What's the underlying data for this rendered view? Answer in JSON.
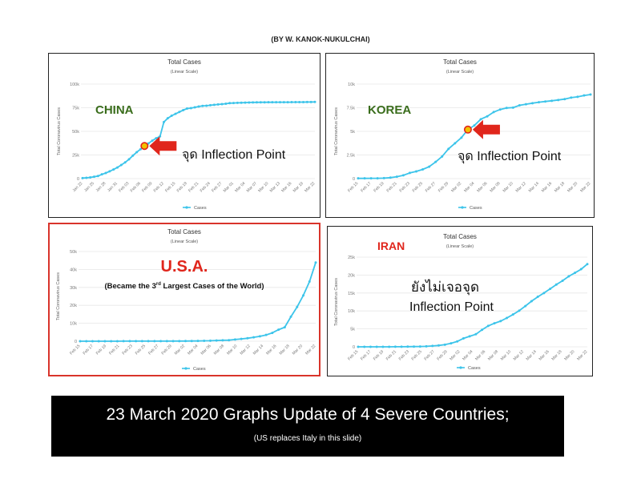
{
  "credit": "(BY W. KANOK-NUKULCHAI)",
  "banner": {
    "main": "23 March 2020 Graphs Update of 4 Severe Countries;",
    "sub": "(US replaces Italy in this slide)"
  },
  "colors": {
    "line": "#3cc4ea",
    "grid": "#e6e6e6",
    "inflection_marker": "#f2c200",
    "arrow": "#e0261c",
    "china_korea_label": "#3a6d1c",
    "usa_iran_label": "#e0261c",
    "panel_border_usa": "#d9342b"
  },
  "panels": {
    "china": {
      "title": "Total Cases",
      "subtitle": "(Linear Scale)",
      "country": "CHINA",
      "note": "จุด Inflection Point",
      "ylabel": "Total Coronavirus Cases",
      "legend": "Cases"
    },
    "korea": {
      "title": "Total Cases",
      "subtitle": "(Linear Scale)",
      "country": "KOREA",
      "note": "จุด Inflection Point",
      "ylabel": "Total Coronavirus Cases",
      "legend": "Cases"
    },
    "usa": {
      "title": "Total Cases",
      "subtitle": "(Linear Scale)",
      "country": "U.S.A.",
      "note_pre": "(Became the 3",
      "note_sup": "rd",
      "note_post": " Largest Cases of the World)",
      "ylabel": "Total Coronavirus Cases",
      "legend": "Cases"
    },
    "iran": {
      "title": "Total Cases",
      "subtitle": "(Linear Scale)",
      "country": "IRAN",
      "note_line1": "ยังไม่เจอจุด",
      "note_line2": "Inflection Point",
      "ylabel": "Total Coronavirus Cases",
      "legend": "Cases"
    }
  },
  "chart_data": [
    {
      "type": "line",
      "name": "china",
      "title": "Total Cases",
      "subtitle": "(Linear Scale)",
      "ylabel": "Total Coronavirus Cases",
      "legend": "Cases",
      "grid": true,
      "legend_position": "bottom",
      "ylim": [
        0,
        100000
      ],
      "yticks": [
        0,
        25000,
        50000,
        75000,
        100000
      ],
      "ytick_labels": [
        "0",
        "25k",
        "50k",
        "75k",
        "100k"
      ],
      "xticks": [
        "Jan 22",
        "Jan 25",
        "Jan 28",
        "Jan 31",
        "Feb 03",
        "Feb 06",
        "Feb 09",
        "Feb 12",
        "Feb 15",
        "Feb 18",
        "Feb 21",
        "Feb 24",
        "Feb 27",
        "Mar 01",
        "Mar 04",
        "Mar 07",
        "Mar 10",
        "Mar 13",
        "Mar 16",
        "Mar 19",
        "Mar 22"
      ],
      "values": [
        571,
        830,
        1287,
        1975,
        2744,
        4515,
        5974,
        7711,
        9692,
        11791,
        14380,
        17205,
        20438,
        24324,
        28018,
        31161,
        34546,
        37198,
        40171,
        42638,
        44653,
        59804,
        63851,
        66492,
        68500,
        70548,
        72436,
        74185,
        74576,
        75465,
        76288,
        76936,
        77150,
        77658,
        78064,
        78497,
        78824,
        79251,
        79824,
        80026,
        80151,
        80270,
        80409,
        80552,
        80651,
        80695,
        80735,
        80754,
        80778,
        80793,
        80813,
        80824,
        80844,
        80860,
        80881,
        80894,
        80928,
        80967,
        81008,
        81054,
        81093
      ],
      "inflection_index": 16
    },
    {
      "type": "line",
      "name": "korea",
      "title": "Total Cases",
      "subtitle": "(Linear Scale)",
      "ylabel": "Total Coronavirus Cases",
      "legend": "Cases",
      "grid": true,
      "legend_position": "bottom",
      "ylim": [
        0,
        10000
      ],
      "yticks": [
        0,
        2500,
        5000,
        7500,
        10000
      ],
      "ytick_labels": [
        "0",
        "2.5k",
        "5k",
        "7.5k",
        "10k"
      ],
      "xticks": [
        "Feb 15",
        "Feb 17",
        "Feb 19",
        "Feb 21",
        "Feb 23",
        "Feb 25",
        "Feb 27",
        "Feb 29",
        "Mar 02",
        "Mar 04",
        "Mar 06",
        "Mar 08",
        "Mar 10",
        "Mar 12",
        "Mar 14",
        "Mar 16",
        "Mar 18",
        "Mar 20",
        "Mar 22"
      ],
      "values": [
        28,
        29,
        30,
        31,
        51,
        104,
        204,
        346,
        602,
        763,
        977,
        1261,
        1766,
        2337,
        3150,
        3736,
        4335,
        5186,
        5621,
        6284,
        6593,
        7041,
        7314,
        7478,
        7513,
        7755,
        7869,
        7979,
        8086,
        8162,
        8236,
        8320,
        8413,
        8565,
        8652,
        8799,
        8897
      ],
      "inflection_index": 17
    },
    {
      "type": "line",
      "name": "usa",
      "title": "Total Cases",
      "subtitle": "(Linear Scale)",
      "ylabel": "Total Coronavirus Cases",
      "legend": "Cases",
      "grid": true,
      "legend_position": "bottom",
      "ylim": [
        0,
        50000
      ],
      "yticks": [
        0,
        10000,
        20000,
        30000,
        40000,
        50000
      ],
      "ytick_labels": [
        "0",
        "10k",
        "20k",
        "30k",
        "40k",
        "50k"
      ],
      "xticks": [
        "Feb 15",
        "Feb 17",
        "Feb 19",
        "Feb 21",
        "Feb 23",
        "Feb 25",
        "Feb 27",
        "Feb 29",
        "Mar 02",
        "Mar 04",
        "Mar 06",
        "Mar 08",
        "Mar 10",
        "Mar 12",
        "Mar 14",
        "Mar 16",
        "Mar 18",
        "Mar 20",
        "Mar 22"
      ],
      "values": [
        15,
        15,
        15,
        15,
        15,
        15,
        15,
        35,
        35,
        35,
        53,
        53,
        59,
        60,
        62,
        70,
        74,
        98,
        118,
        149,
        217,
        262,
        402,
        518,
        583,
        959,
        1281,
        1663,
        2179,
        2726,
        3499,
        4632,
        6421,
        7783,
        13677,
        19100,
        25489,
        33276,
        43847
      ]
    },
    {
      "type": "line",
      "name": "iran",
      "title": "Total Cases",
      "subtitle": "(Linear Scale)",
      "ylabel": "Total Coronavirus Cases",
      "legend": "Cases",
      "grid": true,
      "legend_position": "bottom",
      "ylim": [
        0,
        25000
      ],
      "yticks": [
        0,
        5000,
        10000,
        15000,
        20000,
        25000
      ],
      "ytick_labels": [
        "0",
        "5k",
        "10k",
        "15k",
        "20k",
        "25k"
      ],
      "xticks": [
        "Feb 15",
        "Feb 17",
        "Feb 19",
        "Feb 21",
        "Feb 23",
        "Feb 25",
        "Feb 27",
        "Feb 29",
        "Mar 02",
        "Mar 04",
        "Mar 06",
        "Mar 08",
        "Mar 10",
        "Mar 12",
        "Mar 14",
        "Mar 16",
        "Mar 18",
        "Mar 20",
        "Mar 22"
      ],
      "values": [
        0,
        0,
        0,
        0,
        2,
        5,
        18,
        28,
        43,
        61,
        95,
        139,
        245,
        388,
        593,
        978,
        1501,
        2336,
        2922,
        3513,
        4747,
        5823,
        6566,
        7161,
        8042,
        9000,
        10075,
        11364,
        12729,
        13938,
        14991,
        16169,
        17361,
        18407,
        19644,
        20610,
        21638,
        23049
      ]
    }
  ]
}
